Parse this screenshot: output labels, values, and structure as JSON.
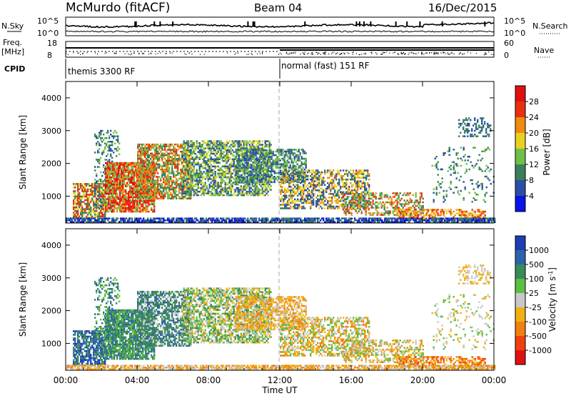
{
  "header": {
    "station": "McMurdo (fitACF)",
    "beam": "Beam 04",
    "date": "16/Dec/2015"
  },
  "noise_panel": {
    "left_label": "N.Sky",
    "right_label": "N.Search",
    "y_top": "10^5",
    "y_bottom": "10^0"
  },
  "freq_panel": {
    "left_label_1": "Freq.",
    "left_label_2": "[MHz]",
    "left_top": "18",
    "left_bottom": "8",
    "right_label": "Nave",
    "right_top": "60",
    "right_bottom": "0"
  },
  "cpid": {
    "label": "CPID",
    "mode1": "themis 3300 RF",
    "mode2": "normal (fast) 151 RF",
    "switch_hour": 12
  },
  "chart_data": [
    {
      "type": "heatmap",
      "name": "power",
      "ylabel": "Slant Range [km]",
      "xlabel": "Time UT",
      "xlim": [
        0,
        24
      ],
      "ylim": [
        180,
        4500
      ],
      "yticks": [
        1000,
        2000,
        3000,
        4000
      ],
      "xticks": [
        "00:00",
        "04:00",
        "08:00",
        "12:00",
        "16:00",
        "20:00",
        "00:00"
      ],
      "colorbar_label": "Power [dB]",
      "colorbar_ticks": [
        "4",
        "8",
        "12",
        "16",
        "20",
        "24",
        "28"
      ],
      "colorbar_range": [
        0,
        32
      ],
      "colors": [
        "#0a14e6",
        "#2a4fa6",
        "#3a7f5a",
        "#6fc04a",
        "#e8d020",
        "#f08a10",
        "#e83010",
        "#e01010"
      ]
    },
    {
      "type": "heatmap",
      "name": "velocity",
      "ylabel": "Slant Range [km]",
      "xlabel": "Time UT",
      "xlim": [
        0,
        24
      ],
      "ylim": [
        180,
        4500
      ],
      "yticks": [
        1000,
        2000,
        3000,
        4000
      ],
      "xticks": [
        "00:00",
        "04:00",
        "08:00",
        "12:00",
        "16:00",
        "20:00",
        "00:00"
      ],
      "colorbar_label": "Velocity [m s",
      "colorbar_label_sup": "-1",
      "colorbar_label_end": "]",
      "colorbar_ticks": [
        "1000",
        "500",
        "100",
        "25",
        "-25",
        "-100",
        "-500",
        "-1000"
      ],
      "colors": [
        "#1e3cb4",
        "#2d63a8",
        "#3a8a5a",
        "#5cc040",
        "#c8c8c8",
        "#f0b010",
        "#f08010",
        "#f04010",
        "#e01010"
      ]
    }
  ]
}
